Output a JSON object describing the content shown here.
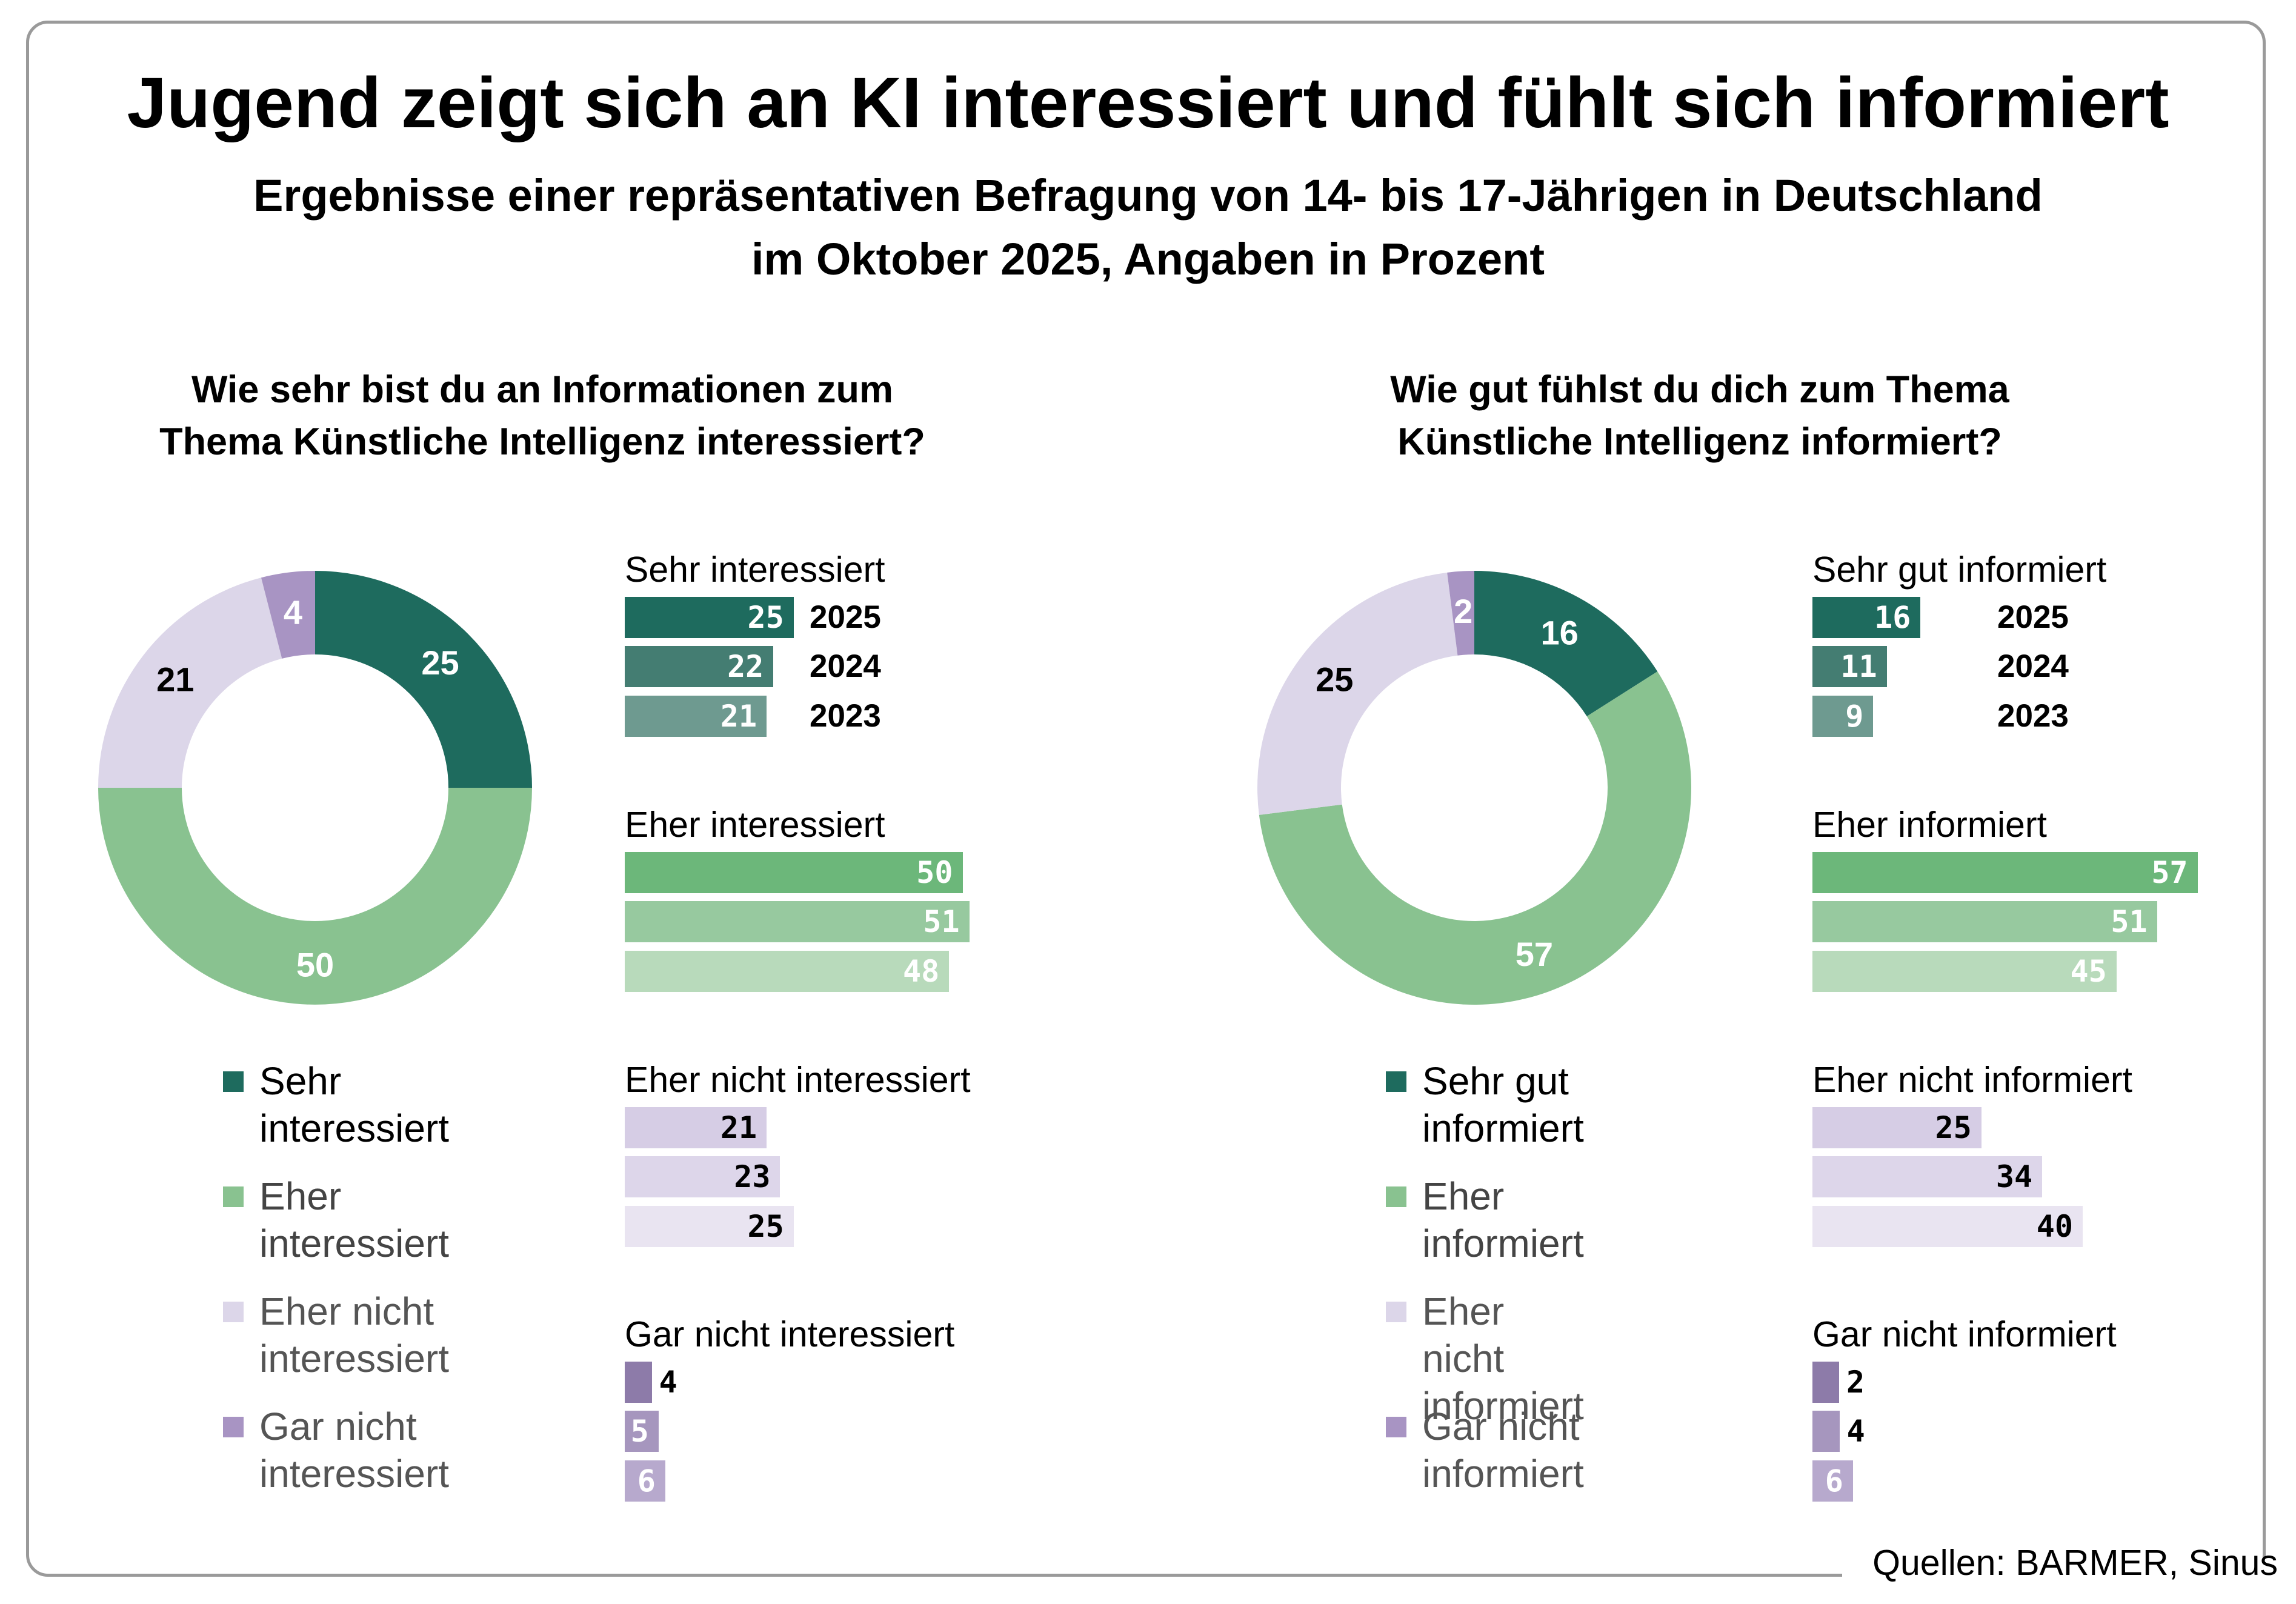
{
  "header": {
    "title": "Jugend zeigt sich an KI interessiert und fühlt sich informiert",
    "subtitle_line1": "Ergebnisse einer repräsentativen Befragung von 14- bis 17-Jährigen in Deutschland",
    "subtitle_line2": "im Oktober 2025, Angaben in Prozent"
  },
  "source": "Quellen: BARMER, Sinus",
  "colors": {
    "sehr": [
      "#1e6b5e",
      "#447d72",
      "#6e9a90"
    ],
    "eher": [
      "#6cb77a",
      "#97c99f",
      "#b8dabb"
    ],
    "ehernicht": [
      "#d6cde5",
      "#ddd6ea",
      "#e9e4f1"
    ],
    "garnicht": [
      "#8d7ba9",
      "#a696be",
      "#b7a9cd"
    ],
    "donut": [
      "#1e6b5e",
      "#89c290",
      "#dcd6e9",
      "#a894c3"
    ]
  },
  "chart_data": [
    {
      "type": "pie",
      "donut": true,
      "question_line1": "Wie sehr bist du an Informationen zum",
      "question_line2": "Thema Künstliche Intelligenz interessiert?",
      "year": "2025",
      "slices": [
        {
          "label": "Sehr interessiert",
          "value": 25
        },
        {
          "label": "Eher interessiert",
          "value": 50
        },
        {
          "label": "Eher nicht interessiert",
          "value": 21
        },
        {
          "label": "Gar nicht interessiert",
          "value": 4
        }
      ],
      "legend": [
        {
          "key": "sehr",
          "text": "Sehr\ninteressiert"
        },
        {
          "key": "eher",
          "text": "Eher\ninteressiert"
        },
        {
          "key": "ehernicht",
          "text": "Eher nicht\ninteressiert"
        },
        {
          "key": "garnicht",
          "text": "Gar nicht\ninteressiert"
        }
      ]
    },
    {
      "type": "bar",
      "orientation": "horizontal",
      "years": [
        "2025",
        "2024",
        "2023"
      ],
      "groups": [
        {
          "key": "sehr",
          "label": "Sehr interessiert",
          "values": [
            25,
            22,
            21
          ]
        },
        {
          "key": "eher",
          "label": "Eher interessiert",
          "values": [
            50,
            51,
            48
          ]
        },
        {
          "key": "ehernicht",
          "label": "Eher nicht interessiert",
          "values": [
            21,
            23,
            25
          ]
        },
        {
          "key": "garnicht",
          "label": "Gar nicht interessiert",
          "values": [
            4,
            5,
            6
          ]
        }
      ]
    },
    {
      "type": "pie",
      "donut": true,
      "question_line1": "Wie gut fühlst du dich zum Thema",
      "question_line2": "Künstliche Intelligenz informiert?",
      "year": "2025",
      "slices": [
        {
          "label": "Sehr gut informiert",
          "value": 16
        },
        {
          "label": "Eher informiert",
          "value": 57
        },
        {
          "label": "Eher nicht informiert",
          "value": 25
        },
        {
          "label": "Gar nicht informiert",
          "value": 2
        }
      ],
      "legend": [
        {
          "key": "sehr",
          "text": "Sehr gut\ninformiert"
        },
        {
          "key": "eher",
          "text": "Eher\ninformiert"
        },
        {
          "key": "ehernicht",
          "text": "Eher nicht\ninformiert"
        },
        {
          "key": "garnicht",
          "text": "Gar nicht\ninformiert"
        }
      ]
    },
    {
      "type": "bar",
      "orientation": "horizontal",
      "years": [
        "2025",
        "2024",
        "2023"
      ],
      "groups": [
        {
          "key": "sehr",
          "label": "Sehr gut informiert",
          "values": [
            16,
            11,
            9
          ]
        },
        {
          "key": "eher",
          "label": "Eher informiert",
          "values": [
            57,
            51,
            45
          ]
        },
        {
          "key": "ehernicht",
          "label": "Eher nicht informiert",
          "values": [
            25,
            34,
            40
          ]
        },
        {
          "key": "garnicht",
          "label": "Gar nicht informiert",
          "values": [
            2,
            4,
            6
          ]
        }
      ]
    }
  ]
}
